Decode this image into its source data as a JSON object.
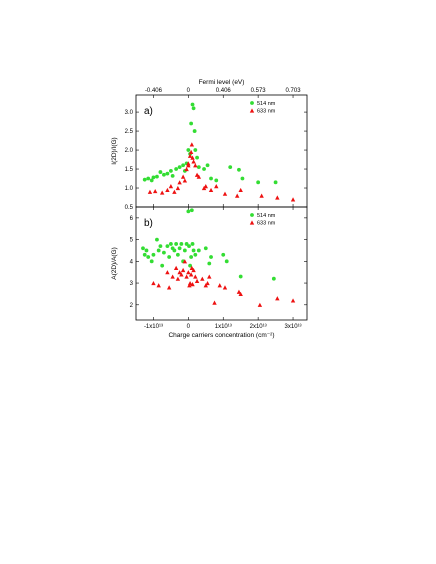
{
  "chart_data": [
    {
      "panel_label": "a)",
      "type": "scatter",
      "ylabel": "I(2D)/I(G)",
      "top_xlabel": "Fermi level (eV)",
      "top_tick_labels": [
        "-0.406",
        "0",
        "0.406",
        "0.573",
        "0.703"
      ],
      "xlim": [
        -15000000000000.0,
        34000000000000.0
      ],
      "ylim": [
        0.5,
        3.45
      ],
      "y_tick_values": [
        0.5,
        1.0,
        1.5,
        2.0,
        2.5,
        3.0
      ],
      "y_tick_labels": [
        "0.5",
        "1.0",
        "1.5",
        "2.0",
        "2.5",
        "3.0"
      ],
      "legend_position": "top-right",
      "series": [
        {
          "name": "514 nm",
          "color": "#33dd33",
          "marker": "circle",
          "points": [
            [
              -12500000000000.0,
              1.22
            ],
            [
              -11500000000000.0,
              1.25
            ],
            [
              -10500000000000.0,
              1.2
            ],
            [
              -10000000000000.0,
              1.28
            ],
            [
              -9000000000000.0,
              1.3
            ],
            [
              -8000000000000.0,
              1.42
            ],
            [
              -7000000000000.0,
              1.35
            ],
            [
              -6000000000000.0,
              1.38
            ],
            [
              -5000000000000.0,
              1.45
            ],
            [
              -4500000000000.0,
              1.32
            ],
            [
              -3500000000000.0,
              1.5
            ],
            [
              -2500000000000.0,
              1.55
            ],
            [
              -1500000000000.0,
              1.6
            ],
            [
              -1000000000000.0,
              1.45
            ],
            [
              -500000000000.0,
              1.65
            ],
            [
              0.0,
              2.0
            ],
            [
              500000000000.0,
              1.9
            ],
            [
              800000000000.0,
              2.7
            ],
            [
              1200000000000.0,
              3.2
            ],
            [
              1500000000000.0,
              3.1
            ],
            [
              1800000000000.0,
              2.5
            ],
            [
              2000000000000.0,
              2.0
            ],
            [
              2500000000000.0,
              1.8
            ],
            [
              3000000000000.0,
              1.55
            ],
            [
              4500000000000.0,
              1.5
            ],
            [
              5500000000000.0,
              1.6
            ],
            [
              6500000000000.0,
              1.25
            ],
            [
              8000000000000.0,
              1.2
            ],
            [
              12000000000000.0,
              1.55
            ],
            [
              14500000000000.0,
              1.48
            ],
            [
              15500000000000.0,
              1.25
            ],
            [
              20000000000000.0,
              1.15
            ],
            [
              25000000000000.0,
              1.15
            ]
          ]
        },
        {
          "name": "633 nm",
          "color": "#ee1111",
          "marker": "triangle",
          "points": [
            [
              -11000000000000.0,
              0.9
            ],
            [
              -9500000000000.0,
              0.92
            ],
            [
              -7500000000000.0,
              0.88
            ],
            [
              -6000000000000.0,
              0.95
            ],
            [
              -5000000000000.0,
              1.05
            ],
            [
              -4000000000000.0,
              0.9
            ],
            [
              -3000000000000.0,
              1.0
            ],
            [
              -2500000000000.0,
              1.15
            ],
            [
              -1500000000000.0,
              1.3
            ],
            [
              -1000000000000.0,
              1.2
            ],
            [
              -500000000000.0,
              1.5
            ],
            [
              0.0,
              1.6
            ],
            [
              0.0,
              1.65
            ],
            [
              500000000000.0,
              1.85
            ],
            [
              800000000000.0,
              1.95
            ],
            [
              1000000000000.0,
              2.15
            ],
            [
              1200000000000.0,
              1.8
            ],
            [
              1500000000000.0,
              1.7
            ],
            [
              2000000000000.0,
              1.6
            ],
            [
              2500000000000.0,
              1.35
            ],
            [
              3000000000000.0,
              1.3
            ],
            [
              4500000000000.0,
              1.0
            ],
            [
              5000000000000.0,
              1.05
            ],
            [
              6500000000000.0,
              0.95
            ],
            [
              8000000000000.0,
              1.05
            ],
            [
              10500000000000.0,
              0.85
            ],
            [
              14000000000000.0,
              0.8
            ],
            [
              15000000000000.0,
              0.95
            ],
            [
              21000000000000.0,
              0.8
            ],
            [
              25500000000000.0,
              0.75
            ],
            [
              30000000000000.0,
              0.7
            ]
          ]
        }
      ]
    },
    {
      "panel_label": "b)",
      "type": "scatter",
      "ylabel": "A(2D)/A(G)",
      "xlabel": "Charge carriers concentration (cm⁻²)",
      "xlim": [
        -15000000000000.0,
        34000000000000.0
      ],
      "ylim": [
        1.3,
        6.5
      ],
      "x_tick_values": [
        -10000000000000.0,
        0.0,
        10000000000000.0,
        20000000000000.0,
        30000000000000.0
      ],
      "x_tick_labels": [
        "-1x10¹³",
        "0",
        "1x10¹³",
        "2x10¹³",
        "3x10¹³"
      ],
      "y_tick_values": [
        2,
        3,
        4,
        5,
        6
      ],
      "y_tick_labels": [
        "2",
        "3",
        "4",
        "5",
        "6"
      ],
      "legend_position": "top-right",
      "series": [
        {
          "name": "514 nm",
          "color": "#33dd33",
          "marker": "circle",
          "points": [
            [
              -13000000000000.0,
              4.6
            ],
            [
              -12500000000000.0,
              4.3
            ],
            [
              -12000000000000.0,
              4.5
            ],
            [
              -11500000000000.0,
              4.2
            ],
            [
              -10500000000000.0,
              4.0
            ],
            [
              -10000000000000.0,
              4.3
            ],
            [
              -9000000000000.0,
              5.0
            ],
            [
              -8500000000000.0,
              4.5
            ],
            [
              -8000000000000.0,
              4.7
            ],
            [
              -7500000000000.0,
              3.8
            ],
            [
              -7000000000000.0,
              4.4
            ],
            [
              -6000000000000.0,
              4.7
            ],
            [
              -5500000000000.0,
              4.2
            ],
            [
              -5000000000000.0,
              4.8
            ],
            [
              -4500000000000.0,
              4.6
            ],
            [
              -4000000000000.0,
              4.5
            ],
            [
              -3500000000000.0,
              4.8
            ],
            [
              -3000000000000.0,
              4.3
            ],
            [
              -2500000000000.0,
              4.6
            ],
            [
              -2000000000000.0,
              4.8
            ],
            [
              -1500000000000.0,
              4.0
            ],
            [
              -1000000000000.0,
              4.5
            ],
            [
              -500000000000.0,
              4.8
            ],
            [
              0.0,
              6.3
            ],
            [
              200000000000.0,
              4.7
            ],
            [
              500000000000.0,
              3.8
            ],
            [
              800000000000.0,
              4.2
            ],
            [
              1000000000000.0,
              6.35
            ],
            [
              1200000000000.0,
              4.8
            ],
            [
              1500000000000.0,
              4.5
            ],
            [
              2000000000000.0,
              4.3
            ],
            [
              3000000000000.0,
              4.5
            ],
            [
              5000000000000.0,
              4.6
            ],
            [
              6000000000000.0,
              3.9
            ],
            [
              6500000000000.0,
              4.2
            ],
            [
              10000000000000.0,
              4.3
            ],
            [
              11000000000000.0,
              4.0
            ],
            [
              15000000000000.0,
              3.3
            ],
            [
              24500000000000.0,
              3.2
            ]
          ]
        },
        {
          "name": "633 nm",
          "color": "#ee1111",
          "marker": "triangle",
          "points": [
            [
              -10000000000000.0,
              3.0
            ],
            [
              -8500000000000.0,
              2.9
            ],
            [
              -6000000000000.0,
              3.5
            ],
            [
              -5500000000000.0,
              2.8
            ],
            [
              -4500000000000.0,
              3.3
            ],
            [
              -3500000000000.0,
              3.7
            ],
            [
              -3000000000000.0,
              3.2
            ],
            [
              -2500000000000.0,
              3.5
            ],
            [
              -2000000000000.0,
              3.4
            ],
            [
              -1500000000000.0,
              3.6
            ],
            [
              -1000000000000.0,
              4.0
            ],
            [
              -500000000000.0,
              3.3
            ],
            [
              0.0,
              3.5
            ],
            [
              300000000000.0,
              2.9
            ],
            [
              500000000000.0,
              3.0
            ],
            [
              800000000000.0,
              3.4
            ],
            [
              1000000000000.0,
              3.7
            ],
            [
              1200000000000.0,
              2.95
            ],
            [
              1500000000000.0,
              3.6
            ],
            [
              2000000000000.0,
              3.3
            ],
            [
              2500000000000.0,
              3.1
            ],
            [
              4000000000000.0,
              3.2
            ],
            [
              5000000000000.0,
              2.9
            ],
            [
              5500000000000.0,
              3.0
            ],
            [
              6000000000000.0,
              3.3
            ],
            [
              7500000000000.0,
              2.1
            ],
            [
              9000000000000.0,
              2.9
            ],
            [
              10500000000000.0,
              2.8
            ],
            [
              14500000000000.0,
              2.6
            ],
            [
              15000000000000.0,
              2.5
            ],
            [
              20500000000000.0,
              2.0
            ],
            [
              25500000000000.0,
              2.3
            ],
            [
              30000000000000.0,
              2.2
            ]
          ]
        }
      ]
    }
  ]
}
